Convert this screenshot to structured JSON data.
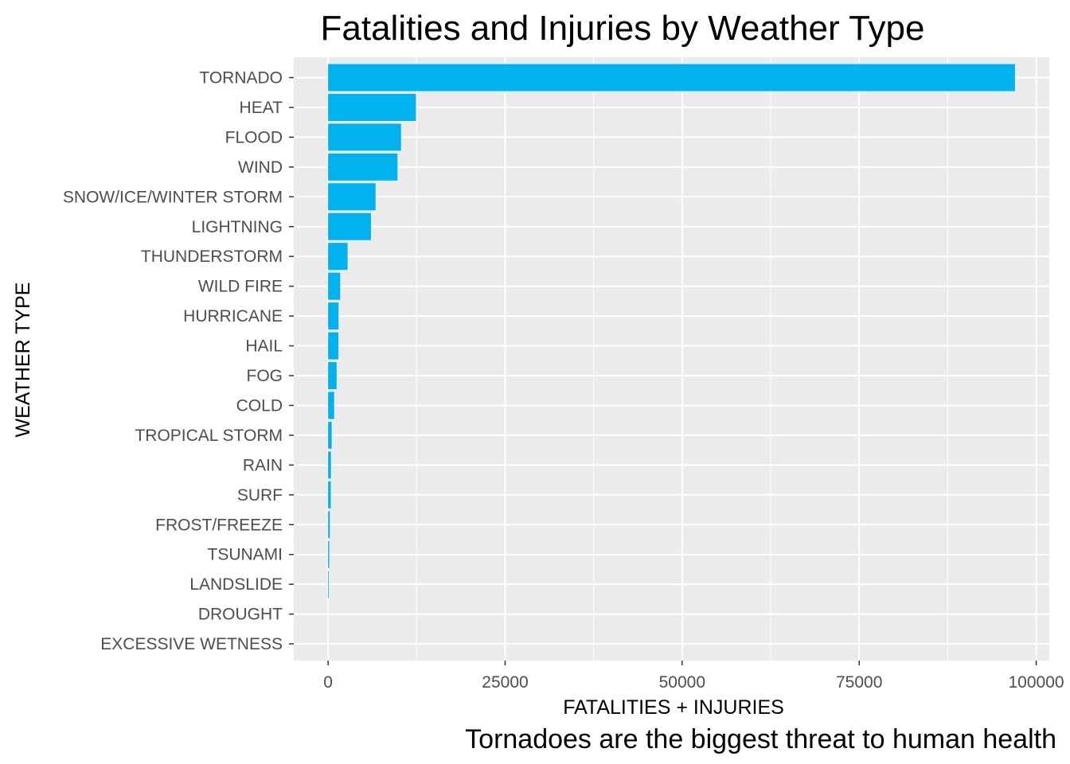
{
  "chart_data": {
    "type": "bar",
    "orientation": "horizontal",
    "title": "Fatalities and Injuries by Weather Type",
    "caption": "Tornadoes are the biggest threat to human health",
    "xlabel": "FATALITIES + INJURIES",
    "ylabel": "WEATHER TYPE",
    "categories": [
      "TORNADO",
      "HEAT",
      "FLOOD",
      "WIND",
      "SNOW/ICE/WINTER STORM",
      "LIGHTNING",
      "THUNDERSTORM",
      "WILD FIRE",
      "HURRICANE",
      "HAIL",
      "FOG",
      "COLD",
      "TROPICAL STORM",
      "RAIN",
      "SURF",
      "FROST/FREEZE",
      "TSUNAMI",
      "LANDSLIDE",
      "DROUGHT",
      "EXCESSIVE WETNESS"
    ],
    "values": [
      97000,
      12400,
      10300,
      9800,
      6700,
      6050,
      2750,
      1700,
      1470,
      1450,
      1200,
      850,
      500,
      400,
      380,
      240,
      160,
      90,
      10,
      5
    ],
    "xticks": [
      0,
      25000,
      50000,
      75000,
      100000
    ],
    "xtick_labels": [
      "0",
      "25000",
      "50000",
      "75000",
      "100000"
    ],
    "xlim": [
      -4850,
      101850
    ],
    "bar_color": "#00b2ee",
    "panel_color": "#ebebeb",
    "grid": true,
    "legend": "none"
  }
}
